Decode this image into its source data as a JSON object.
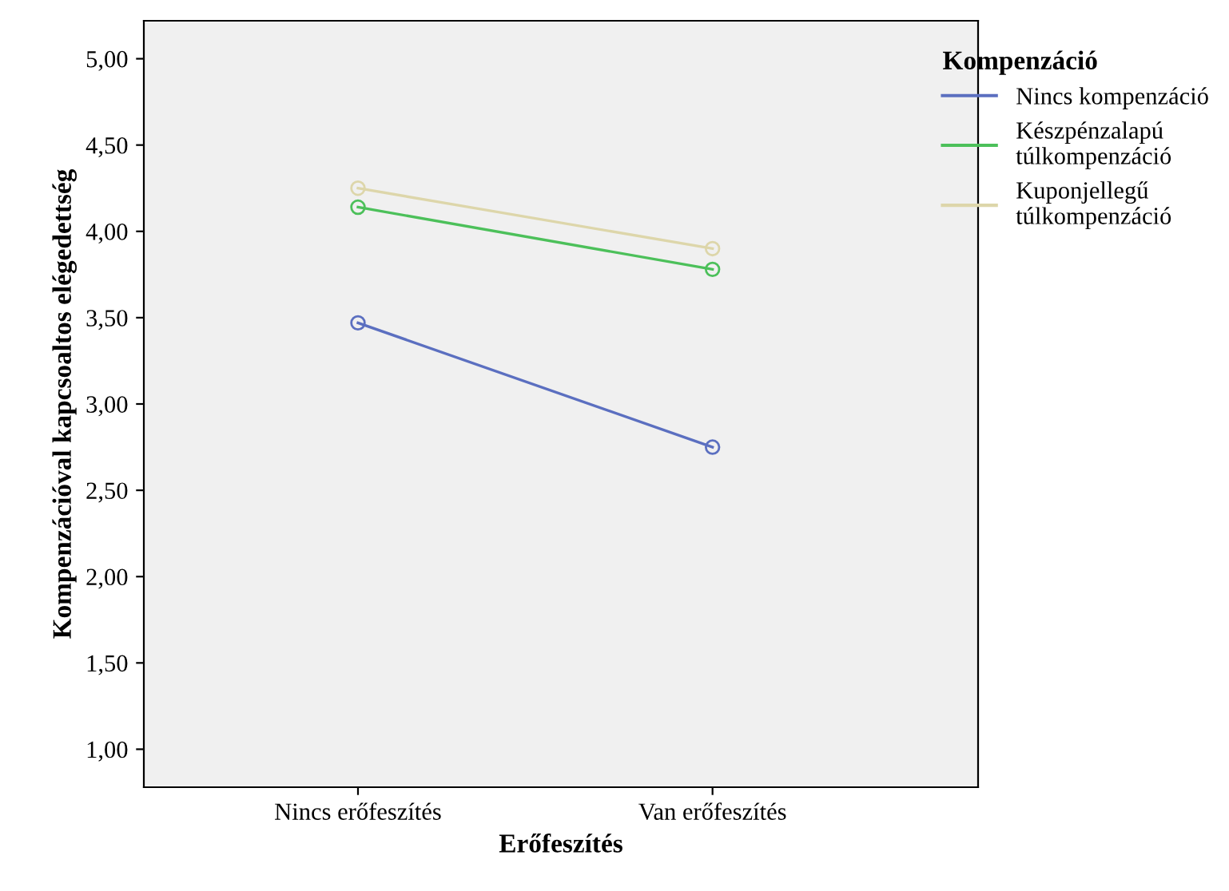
{
  "chart_data": {
    "type": "line",
    "xlabel": "Erőfeszítés",
    "ylabel": "Kompenzációval kapcsoaltos elégedettség",
    "legend_title": "Kompenzáció",
    "legend": "right",
    "marker": "circle",
    "line_style": "solid",
    "grid": false,
    "categories": [
      "Nincs erőfeszítés",
      "Van erőfeszítés"
    ],
    "series": [
      {
        "name": "Nincs kompenzáció",
        "color": "#5b6fc0",
        "values": [
          3.47,
          2.75
        ]
      },
      {
        "name": "Készpénzalapú\ntúlkompenzáció",
        "color": "#4cc05a",
        "values": [
          4.14,
          3.78
        ]
      },
      {
        "name": "Kuponjellegű\ntúlkompenzáció",
        "color": "#ddd6aa",
        "values": [
          4.25,
          3.9
        ]
      }
    ],
    "ylim": [
      0.78,
      5.22
    ],
    "yticks": [
      {
        "value": 1,
        "label": "1,00"
      },
      {
        "value": 1.5,
        "label": "1,50"
      },
      {
        "value": 2,
        "label": "2,00"
      },
      {
        "value": 2.5,
        "label": "2,50"
      },
      {
        "value": 3,
        "label": "3,00"
      },
      {
        "value": 3.5,
        "label": "3,50"
      },
      {
        "value": 4,
        "label": "4,00"
      },
      {
        "value": 4.5,
        "label": "4,50"
      },
      {
        "value": 5,
        "label": "5,00"
      }
    ]
  }
}
